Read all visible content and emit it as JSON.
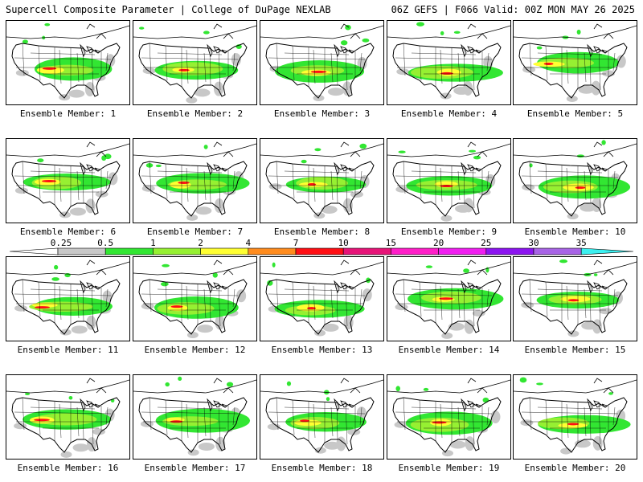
{
  "header": {
    "title_left": "Supercell Composite Parameter | College of DuPage NEXLAB",
    "title_right": "06Z GEFS | F066 Valid: 00Z MON MAY 26 2025"
  },
  "panels": [
    {
      "label": "Ensemble Member: 1"
    },
    {
      "label": "Ensemble Member: 2"
    },
    {
      "label": "Ensemble Member: 3"
    },
    {
      "label": "Ensemble Member: 4"
    },
    {
      "label": "Ensemble Member: 5"
    },
    {
      "label": "Ensemble Member: 6"
    },
    {
      "label": "Ensemble Member: 7"
    },
    {
      "label": "Ensemble Member: 8"
    },
    {
      "label": "Ensemble Member: 9"
    },
    {
      "label": "Ensemble Member: 10"
    },
    {
      "label": "Ensemble Member: 11"
    },
    {
      "label": "Ensemble Member: 12"
    },
    {
      "label": "Ensemble Member: 13"
    },
    {
      "label": "Ensemble Member: 14"
    },
    {
      "label": "Ensemble Member: 15"
    },
    {
      "label": "Ensemble Member: 16"
    },
    {
      "label": "Ensemble Member: 17"
    },
    {
      "label": "Ensemble Member: 18"
    },
    {
      "label": "Ensemble Member: 19"
    },
    {
      "label": "Ensemble Member: 20"
    }
  ],
  "colorbar": {
    "ticks": [
      "0.25",
      "0.5",
      "1",
      "2",
      "4",
      "7",
      "10",
      "15",
      "20",
      "25",
      "30",
      "35"
    ],
    "colors": [
      "#c8c8c8",
      "#32e632",
      "#96f032",
      "#ffff32",
      "#ff8c1e",
      "#ff0f14",
      "#e61478",
      "#ff1ec8",
      "#f01ef0",
      "#8c14f0",
      "#a864e6",
      "#3cf0f0"
    ]
  }
}
